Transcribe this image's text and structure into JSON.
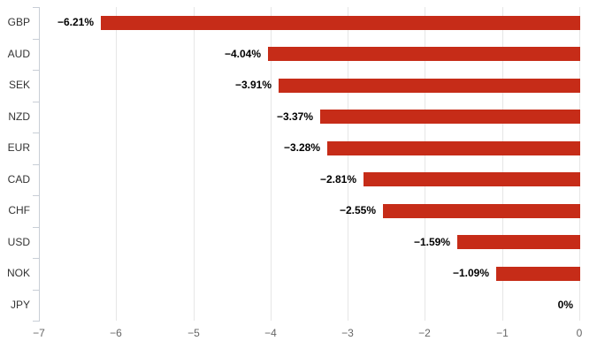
{
  "chart_data": {
    "type": "bar",
    "orientation": "horizontal",
    "title": "",
    "xlabel": "",
    "ylabel": "",
    "categories": [
      "GBP",
      "AUD",
      "SEK",
      "NZD",
      "EUR",
      "CAD",
      "CHF",
      "USD",
      "NOK",
      "JPY"
    ],
    "values": [
      -6.21,
      -4.04,
      -3.91,
      -3.37,
      -3.28,
      -2.81,
      -2.55,
      -1.59,
      -1.09,
      0
    ],
    "value_labels": [
      "−6.21%",
      "−4.04%",
      "−3.91%",
      "−3.37%",
      "−3.28%",
      "−2.81%",
      "−2.55%",
      "−1.59%",
      "−1.09%",
      "0%"
    ],
    "xlim": [
      -7,
      0
    ],
    "xticks": [
      -7,
      -6,
      -5,
      -4,
      -3,
      -2,
      -1,
      0
    ],
    "xtick_labels": [
      "−7",
      "−6",
      "−5",
      "−4",
      "−3",
      "−2",
      "−1",
      "0"
    ],
    "grid": true,
    "legend": false,
    "colors": {
      "bar": "#c62c18",
      "gridline": "#e6e6e6",
      "axis_line": "#c8ced6",
      "data_label": "#000000",
      "category_label": "#333333",
      "xtick_label": "#666666",
      "background": "#ffffff"
    }
  }
}
